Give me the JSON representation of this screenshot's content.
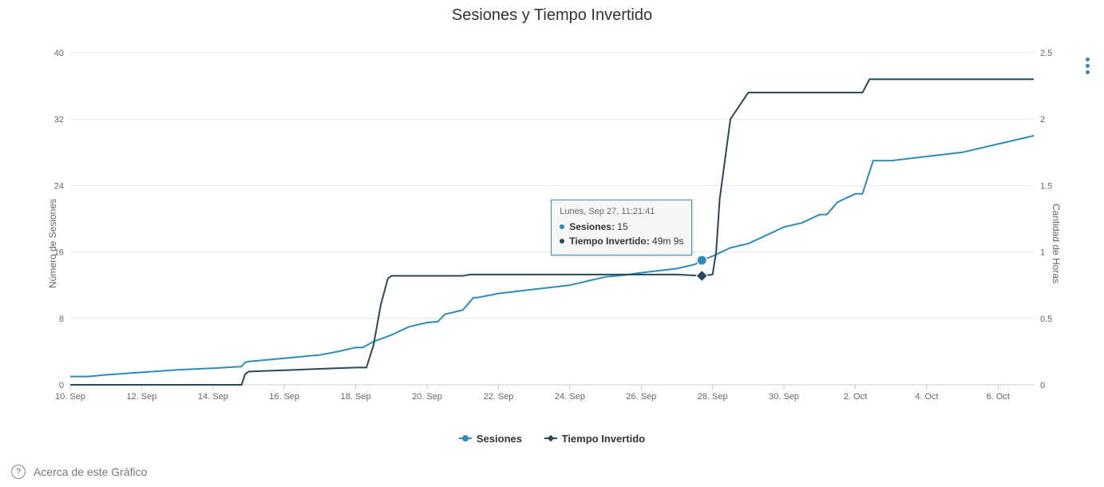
{
  "chart": {
    "type": "line",
    "title": "Sesiones y Tiempo Invertido",
    "font_family": "Segoe UI",
    "title_fontsize": 20,
    "background_color": "#ffffff",
    "grid_color": "#e6e6e6",
    "axis_line_color": "#cccccc",
    "tick_label_color": "#666666",
    "tick_fontsize": 11,
    "x": {
      "min": 0,
      "max": 27,
      "tick_positions": [
        0,
        2,
        4,
        6,
        8,
        10,
        12,
        14,
        16,
        18,
        20,
        22,
        24,
        26
      ],
      "tick_labels": [
        "10. Sep",
        "12. Sep",
        "14. Sep",
        "16. Sep",
        "18. Sep",
        "20. Sep",
        "22. Sep",
        "24. Sep",
        "26. Sep",
        "28. Sep",
        "30. Sep",
        "2. Oct",
        "4. Oct",
        "6. Oct"
      ]
    },
    "y_left": {
      "title": "Número de Sesiones",
      "min": 0,
      "max": 40,
      "ticks": [
        0,
        8,
        16,
        24,
        32,
        40
      ]
    },
    "y_right": {
      "title": "Cantidad de Horas",
      "min": 0,
      "max": 2.5,
      "ticks": [
        0,
        0.5,
        1,
        1.5,
        2,
        2.5
      ]
    },
    "series": [
      {
        "name": "Sesiones",
        "color": "#2e8cb8",
        "line_width": 2,
        "marker": "circle",
        "axis": "left",
        "data": [
          [
            0,
            1.0
          ],
          [
            0.5,
            1.0
          ],
          [
            1,
            1.2
          ],
          [
            2,
            1.5
          ],
          [
            3,
            1.8
          ],
          [
            4,
            2.0
          ],
          [
            4.8,
            2.2
          ],
          [
            4.9,
            2.7
          ],
          [
            5.0,
            2.8
          ],
          [
            6,
            3.2
          ],
          [
            7,
            3.6
          ],
          [
            7.5,
            4.0
          ],
          [
            8,
            4.5
          ],
          [
            8.2,
            4.5
          ],
          [
            8.5,
            5.2
          ],
          [
            9,
            6.0
          ],
          [
            9.5,
            7.0
          ],
          [
            10,
            7.5
          ],
          [
            10.3,
            7.6
          ],
          [
            10.5,
            8.5
          ],
          [
            11,
            9.0
          ],
          [
            11.3,
            10.5
          ],
          [
            11.4,
            10.5
          ],
          [
            12,
            11.0
          ],
          [
            13,
            11.5
          ],
          [
            14,
            12.0
          ],
          [
            14.5,
            12.5
          ],
          [
            15,
            13.0
          ],
          [
            15.5,
            13.2
          ],
          [
            16,
            13.5
          ],
          [
            17,
            14.0
          ],
          [
            17.5,
            14.5
          ],
          [
            17.7,
            15.0
          ],
          [
            18,
            15.5
          ],
          [
            18.5,
            16.5
          ],
          [
            19,
            17.0
          ],
          [
            19.5,
            18.0
          ],
          [
            20,
            19.0
          ],
          [
            20.5,
            19.5
          ],
          [
            21,
            20.5
          ],
          [
            21.2,
            20.5
          ],
          [
            21.5,
            22.0
          ],
          [
            22,
            23.0
          ],
          [
            22.2,
            23.0
          ],
          [
            22.5,
            27.0
          ],
          [
            23,
            27.0
          ],
          [
            24,
            27.5
          ],
          [
            25,
            28.0
          ],
          [
            26,
            29.0
          ],
          [
            27,
            30.0
          ]
        ]
      },
      {
        "name": "Tiempo Invertido",
        "color": "#264a5a",
        "line_width": 2,
        "marker": "diamond",
        "axis": "right",
        "data": [
          [
            0,
            0.0
          ],
          [
            4.8,
            0.0
          ],
          [
            4.9,
            0.08
          ],
          [
            5.0,
            0.1
          ],
          [
            6,
            0.11
          ],
          [
            7,
            0.12
          ],
          [
            8,
            0.13
          ],
          [
            8.3,
            0.13
          ],
          [
            8.5,
            0.3
          ],
          [
            8.7,
            0.6
          ],
          [
            8.9,
            0.8
          ],
          [
            9.0,
            0.82
          ],
          [
            10,
            0.82
          ],
          [
            11,
            0.82
          ],
          [
            11.2,
            0.83
          ],
          [
            12,
            0.83
          ],
          [
            13,
            0.83
          ],
          [
            14,
            0.83
          ],
          [
            15,
            0.83
          ],
          [
            16,
            0.83
          ],
          [
            17,
            0.83
          ],
          [
            17.7,
            0.82
          ],
          [
            18,
            0.83
          ],
          [
            18.1,
            1.0
          ],
          [
            18.2,
            1.4
          ],
          [
            18.5,
            2.0
          ],
          [
            19,
            2.2
          ],
          [
            20,
            2.2
          ],
          [
            21,
            2.2
          ],
          [
            22,
            2.2
          ],
          [
            22.2,
            2.2
          ],
          [
            22.4,
            2.3
          ],
          [
            23,
            2.3
          ],
          [
            24,
            2.3
          ],
          [
            25,
            2.3
          ],
          [
            26,
            2.3
          ],
          [
            27,
            2.3
          ]
        ]
      }
    ],
    "tooltip": {
      "x": 17.7,
      "header": "Lunes, Sep 27, 11:21:41",
      "rows": [
        {
          "color": "#2e8cb8",
          "label": "Sesiones:",
          "value": "15"
        },
        {
          "color": "#264a5a",
          "label": "Tiempo Invertido:",
          "value": "49m 9s"
        }
      ],
      "point_sesiones_y": 15,
      "point_tiempo_y": 0.82,
      "border_color": "#3b8fbb",
      "bg_color": "#f7f7f7"
    },
    "legend": {
      "items": [
        {
          "label": "Sesiones",
          "color": "#2e8cb8",
          "shape": "circle"
        },
        {
          "label": "Tiempo Invertido",
          "color": "#264a5a",
          "shape": "diamond"
        }
      ]
    }
  },
  "footer": {
    "about_label": "Acerca de este Gráfico"
  }
}
